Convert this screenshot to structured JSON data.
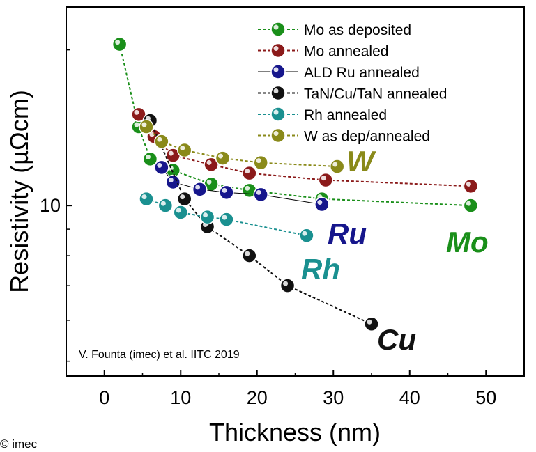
{
  "chart_data": {
    "type": "line",
    "title": "",
    "xlabel": "Thickness (nm)",
    "ylabel": "Resistivity (µΩcm)",
    "xlim": [
      -5,
      55
    ],
    "ylim": [
      4.68,
      24.21
    ],
    "yscale": "log",
    "xticks": [
      0,
      10,
      20,
      30,
      40,
      50
    ],
    "yticks": [
      10
    ],
    "grid": false,
    "legend_position": "top-right",
    "series": [
      {
        "name": "Mo as deposited",
        "color": "#1a8f1a",
        "x": [
          2,
          4.5,
          6,
          9,
          14,
          19,
          28.5,
          48
        ],
        "y": [
          20.5,
          14.2,
          12.3,
          11.7,
          11.0,
          10.7,
          10.3,
          10.0
        ]
      },
      {
        "name": "Mo annealed",
        "color": "#8b1a1a",
        "x": [
          4.5,
          6.5,
          9,
          14,
          19,
          29,
          48
        ],
        "y": [
          15.0,
          13.6,
          12.5,
          12.0,
          11.55,
          11.2,
          10.9
        ]
      },
      {
        "name": "ALD Ru annealed",
        "color": "#16168c",
        "x": [
          7.5,
          9,
          12.5,
          16,
          20.5,
          28.5
        ],
        "y": [
          11.85,
          11.1,
          10.75,
          10.6,
          10.5,
          10.05
        ]
      },
      {
        "name": "TaN/Cu/TaN annealed",
        "color": "#111111",
        "x": [
          6,
          10.5,
          13.5,
          19,
          24,
          35
        ],
        "y": [
          14.6,
          10.3,
          9.1,
          8.0,
          7.0,
          5.9
        ]
      },
      {
        "name": "Rh annealed",
        "color": "#1a9090",
        "x": [
          5.5,
          8,
          10,
          13.5,
          16,
          26.5
        ],
        "y": [
          10.3,
          10.0,
          9.7,
          9.5,
          9.4,
          8.75
        ]
      },
      {
        "name": "W as dep/annealed",
        "color": "#8a8a1a",
        "x": [
          5.5,
          7.5,
          10.5,
          15.5,
          20.5,
          30.5
        ],
        "y": [
          14.2,
          13.3,
          12.8,
          12.35,
          12.1,
          11.9
        ]
      }
    ],
    "annotations": [
      {
        "text": "W",
        "color": "#8a8a1a"
      },
      {
        "text": "Ru",
        "color": "#16168c"
      },
      {
        "text": "Rh",
        "color": "#1a9090"
      },
      {
        "text": "Mo",
        "color": "#1a8f1a"
      },
      {
        "text": "Cu",
        "color": "#111111"
      }
    ],
    "citation": "V. Founta (imec) et al. IITC 2019"
  },
  "copyright": "© imec"
}
